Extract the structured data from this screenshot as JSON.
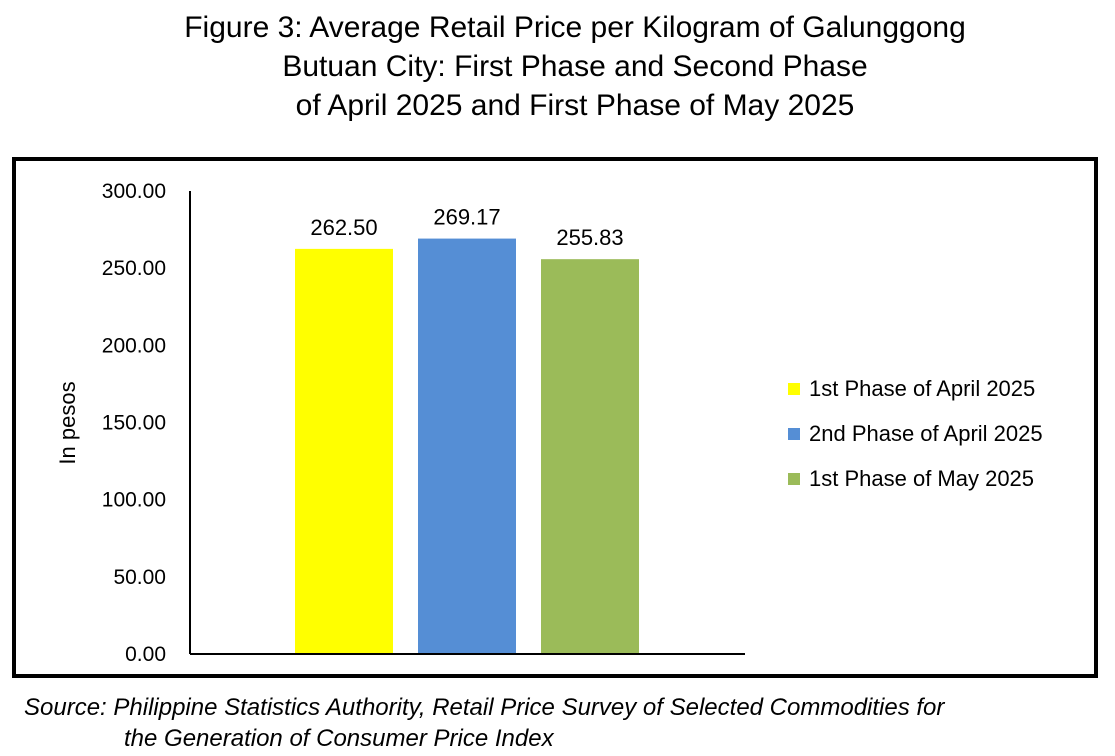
{
  "title_lines": [
    "Figure 3: Average Retail Price per Kilogram of Galunggong",
    "Butuan City: First Phase and Second Phase",
    "of April 2025 and First Phase of May 2025"
  ],
  "source_lines": [
    "Source: Philippine Statistics Authority, Retail Price Survey of Selected Commodities for",
    "the Generation of Consumer Price Index"
  ],
  "chart_data": {
    "type": "bar",
    "title": "Figure 3: Average Retail Price per Kilogram of Galunggong Butuan City: First Phase and Second Phase of April 2025 and First Phase of May 2025",
    "xlabel": "",
    "ylabel": "In pesos",
    "ylim": [
      0,
      300
    ],
    "yticks": [
      0,
      50,
      100,
      150,
      200,
      250,
      300
    ],
    "ytick_labels": [
      "0.00",
      "50.00",
      "100.00",
      "150.00",
      "200.00",
      "250.00",
      "300.00"
    ],
    "grid": false,
    "legend_position": "right",
    "series": [
      {
        "name": "1st Phase of April 2025",
        "value": 262.5,
        "label": "262.50",
        "color": "#FFFF00"
      },
      {
        "name": "2nd Phase of April 2025",
        "value": 269.17,
        "label": "269.17",
        "color": "#558ED5"
      },
      {
        "name": "1st Phase of May 2025",
        "value": 255.83,
        "label": "255.83",
        "color": "#9BBB59"
      }
    ]
  }
}
